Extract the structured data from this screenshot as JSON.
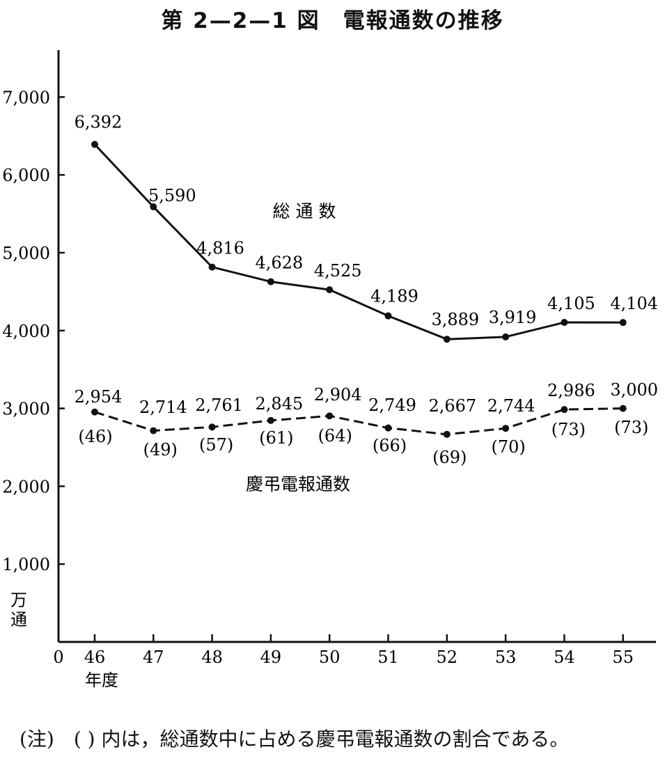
{
  "title": "第 2—2—1 図　電報通数の推移",
  "note": "(注)　( ) 内は，総通数中に占める慶弔電報通数の割合である。",
  "chart_data": {
    "type": "line",
    "title": "第 2—2—1 図　電報通数の推移",
    "xlabel": "年度",
    "ylabel": "万通",
    "x_origin_label": "0",
    "categories": [
      "46",
      "47",
      "48",
      "49",
      "50",
      "51",
      "52",
      "53",
      "54",
      "55"
    ],
    "ylim": [
      0,
      7500
    ],
    "yticks": [
      1000,
      2000,
      3000,
      4000,
      5000,
      6000,
      7000
    ],
    "ytick_labels": [
      "1,000",
      "2,000",
      "3,000",
      "4,000",
      "5,000",
      "6,000",
      "7,000"
    ],
    "grid": false,
    "series": [
      {
        "name": "総 通 数",
        "line_style": "solid",
        "values": [
          6392,
          5590,
          4816,
          4628,
          4525,
          4189,
          3889,
          3919,
          4105,
          4104
        ],
        "value_labels": [
          "6,392",
          "5,590",
          "4,816",
          "4,628",
          "4,525",
          "4,189",
          "3,889",
          "3,919",
          "4,105",
          "4,104"
        ]
      },
      {
        "name": "慶弔電報通数",
        "line_style": "dashed",
        "values": [
          2954,
          2714,
          2761,
          2845,
          2904,
          2749,
          2667,
          2744,
          2986,
          3000
        ],
        "value_labels": [
          "2,954",
          "2,714",
          "2,761",
          "2,845",
          "2,904",
          "2,749",
          "2,667",
          "2,744",
          "2,986",
          "3,000"
        ],
        "share_labels": [
          "(46)",
          "(49)",
          "(57)",
          "(61)",
          "(64)",
          "(66)",
          "(69)",
          "(70)",
          "(73)",
          "(73)"
        ]
      }
    ]
  }
}
